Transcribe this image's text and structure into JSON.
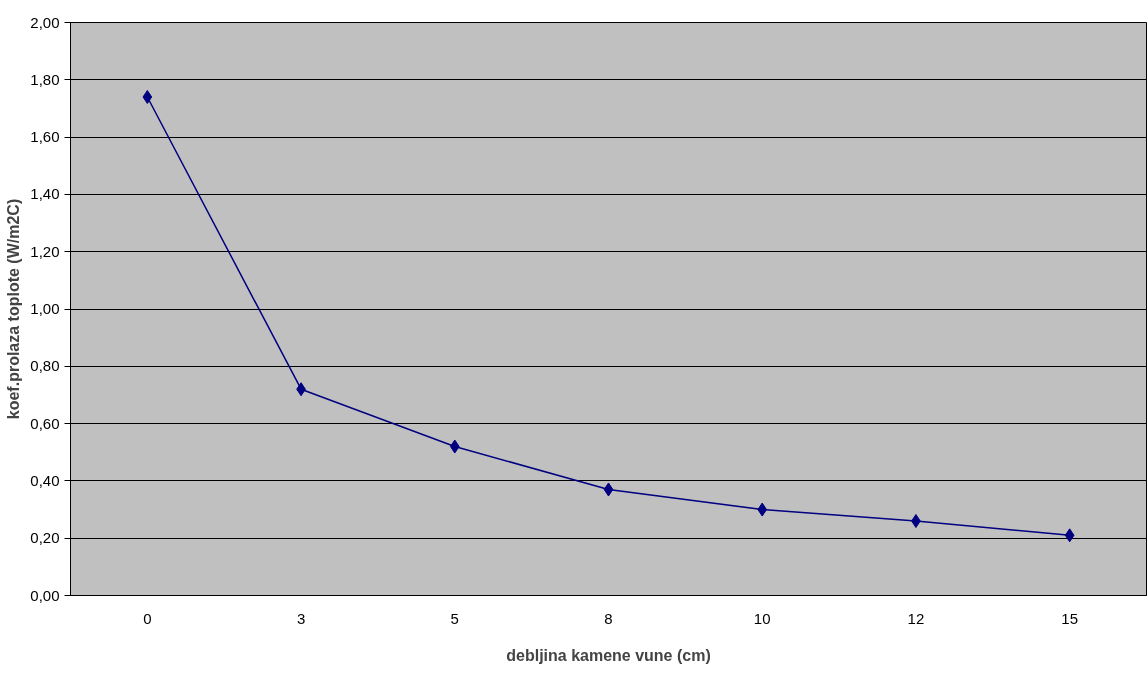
{
  "chart_data": {
    "type": "line",
    "xlabel": "debljina kamene vune (cm)",
    "ylabel": "koef.prolaza toplote (W/m2C)",
    "categories": [
      "0",
      "3",
      "5",
      "8",
      "10",
      "12",
      "15"
    ],
    "series": [
      {
        "color": "#000080",
        "values": [
          1.74,
          0.72,
          0.52,
          0.37,
          0.3,
          0.26,
          0.21
        ]
      }
    ],
    "ylim": [
      0,
      2
    ],
    "yticks": [
      {
        "value": 0,
        "label": "0,00"
      },
      {
        "value": 0.2,
        "label": "0,20"
      },
      {
        "value": 0.4,
        "label": "0,40"
      },
      {
        "value": 0.6,
        "label": "0,60"
      },
      {
        "value": 0.8,
        "label": "0,80"
      },
      {
        "value": 1.0,
        "label": "1,00"
      },
      {
        "value": 1.2,
        "label": "1,20"
      },
      {
        "value": 1.4,
        "label": "1,40"
      },
      {
        "value": 1.6,
        "label": "1,60"
      },
      {
        "value": 1.8,
        "label": "1,80"
      },
      {
        "value": 2.0,
        "label": "2,00"
      }
    ],
    "grid": "y",
    "marker": "diamond",
    "line_style": "solid"
  }
}
